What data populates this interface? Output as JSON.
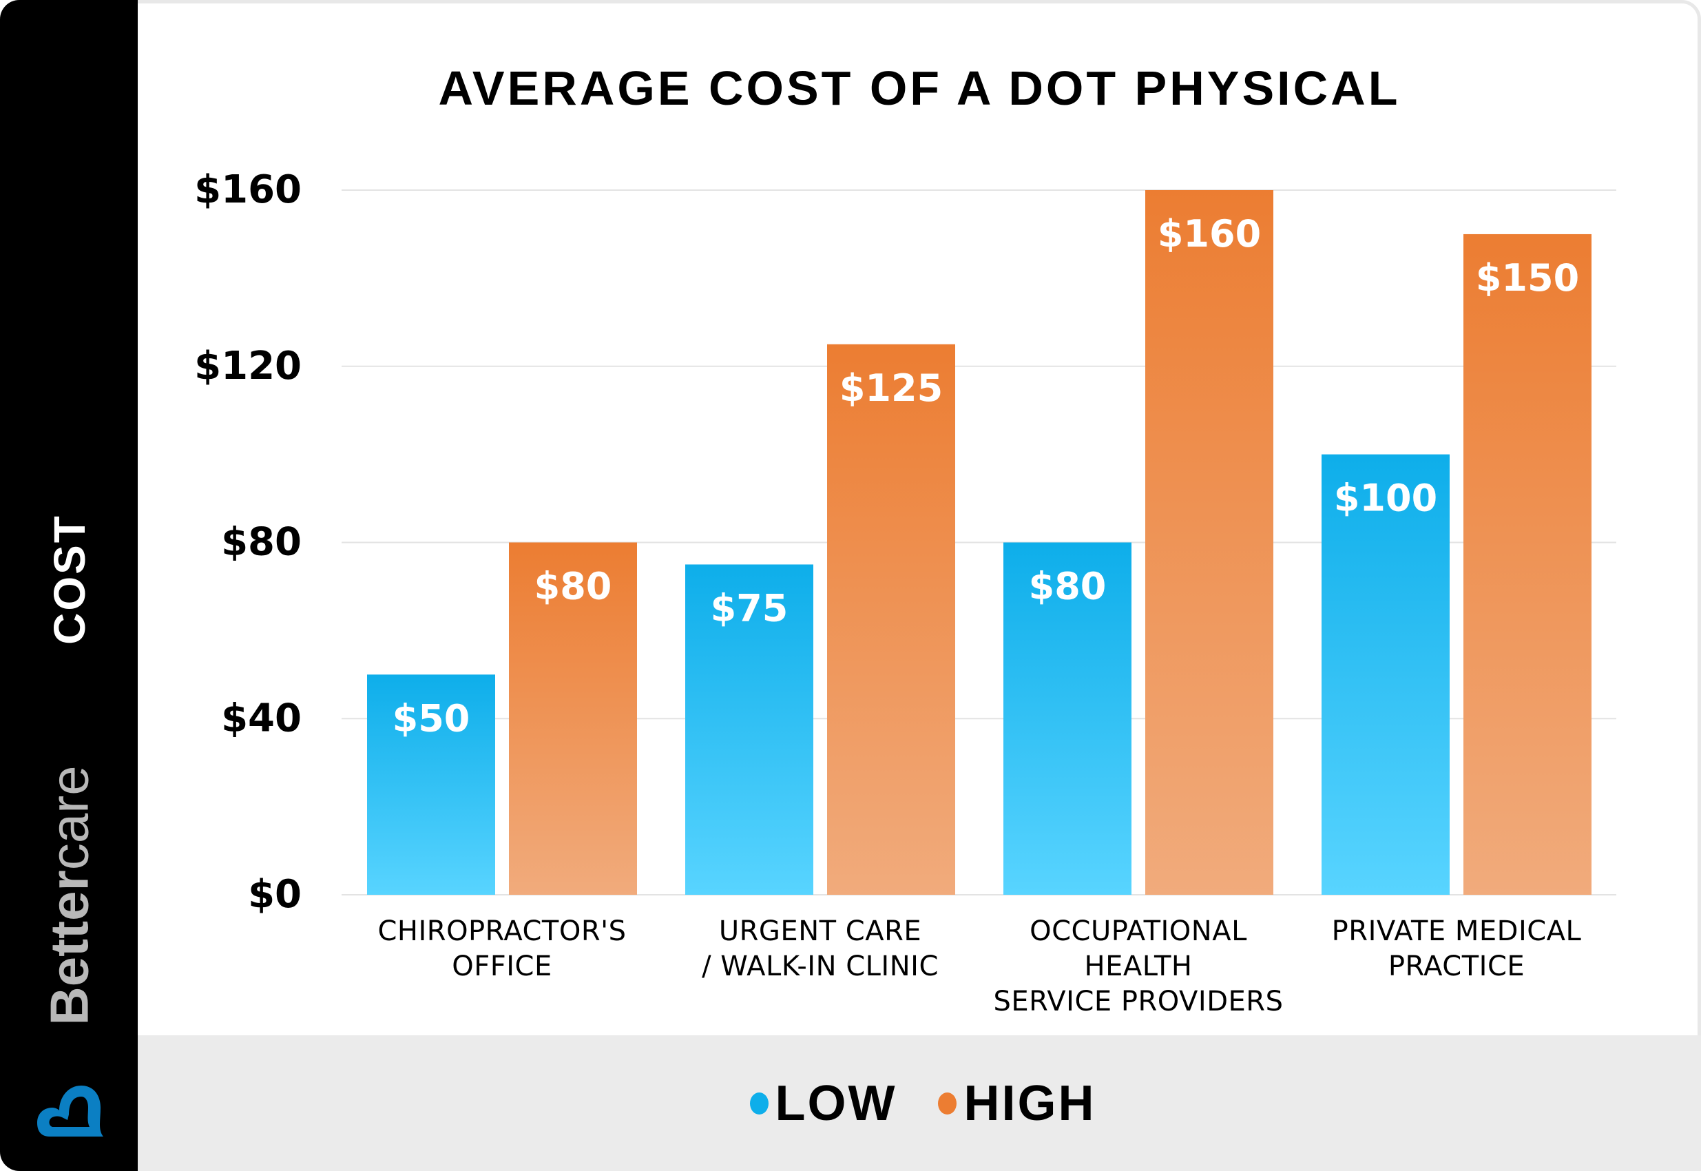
{
  "brand": {
    "name_bold": "Better",
    "name_light": "care",
    "logo_icon": "heart-b-logo-icon",
    "logo_color": "#0b7fc3"
  },
  "colors": {
    "low_top": "#0eaeea",
    "low_bottom": "#58d4ff",
    "high_top": "#ec7d32",
    "high_bottom": "#f1ab7c",
    "grid": "#e3e3e3",
    "panel": "#000000",
    "legend_band": "#ebebeb"
  },
  "chart_data": {
    "type": "bar",
    "title": "AVERAGE COST OF A DOT PHYSICAL",
    "xlabel": "",
    "ylabel": "COST",
    "ylim": [
      0,
      160
    ],
    "yticks": [
      0,
      40,
      80,
      120,
      160
    ],
    "ytick_labels": [
      "$0",
      "$40",
      "$80",
      "$120",
      "$160"
    ],
    "grid": true,
    "legend_position": "bottom",
    "categories": [
      [
        "CHIROPRACTOR'S",
        "OFFICE"
      ],
      [
        "URGENT CARE",
        "/ WALK-IN CLINIC"
      ],
      [
        "OCCUPATIONAL",
        "HEALTH",
        "SERVICE PROVIDERS"
      ],
      [
        "PRIVATE MEDICAL",
        "PRACTICE"
      ]
    ],
    "series": [
      {
        "name": "LOW",
        "values": [
          50,
          75,
          80,
          100
        ],
        "labels": [
          "$50",
          "$75",
          "$80",
          "$100"
        ],
        "color": "#0eaeea"
      },
      {
        "name": "HIGH",
        "values": [
          80,
          125,
          160,
          150
        ],
        "labels": [
          "$80",
          "$125",
          "$160",
          "$150"
        ],
        "color": "#ec7d32"
      }
    ]
  }
}
